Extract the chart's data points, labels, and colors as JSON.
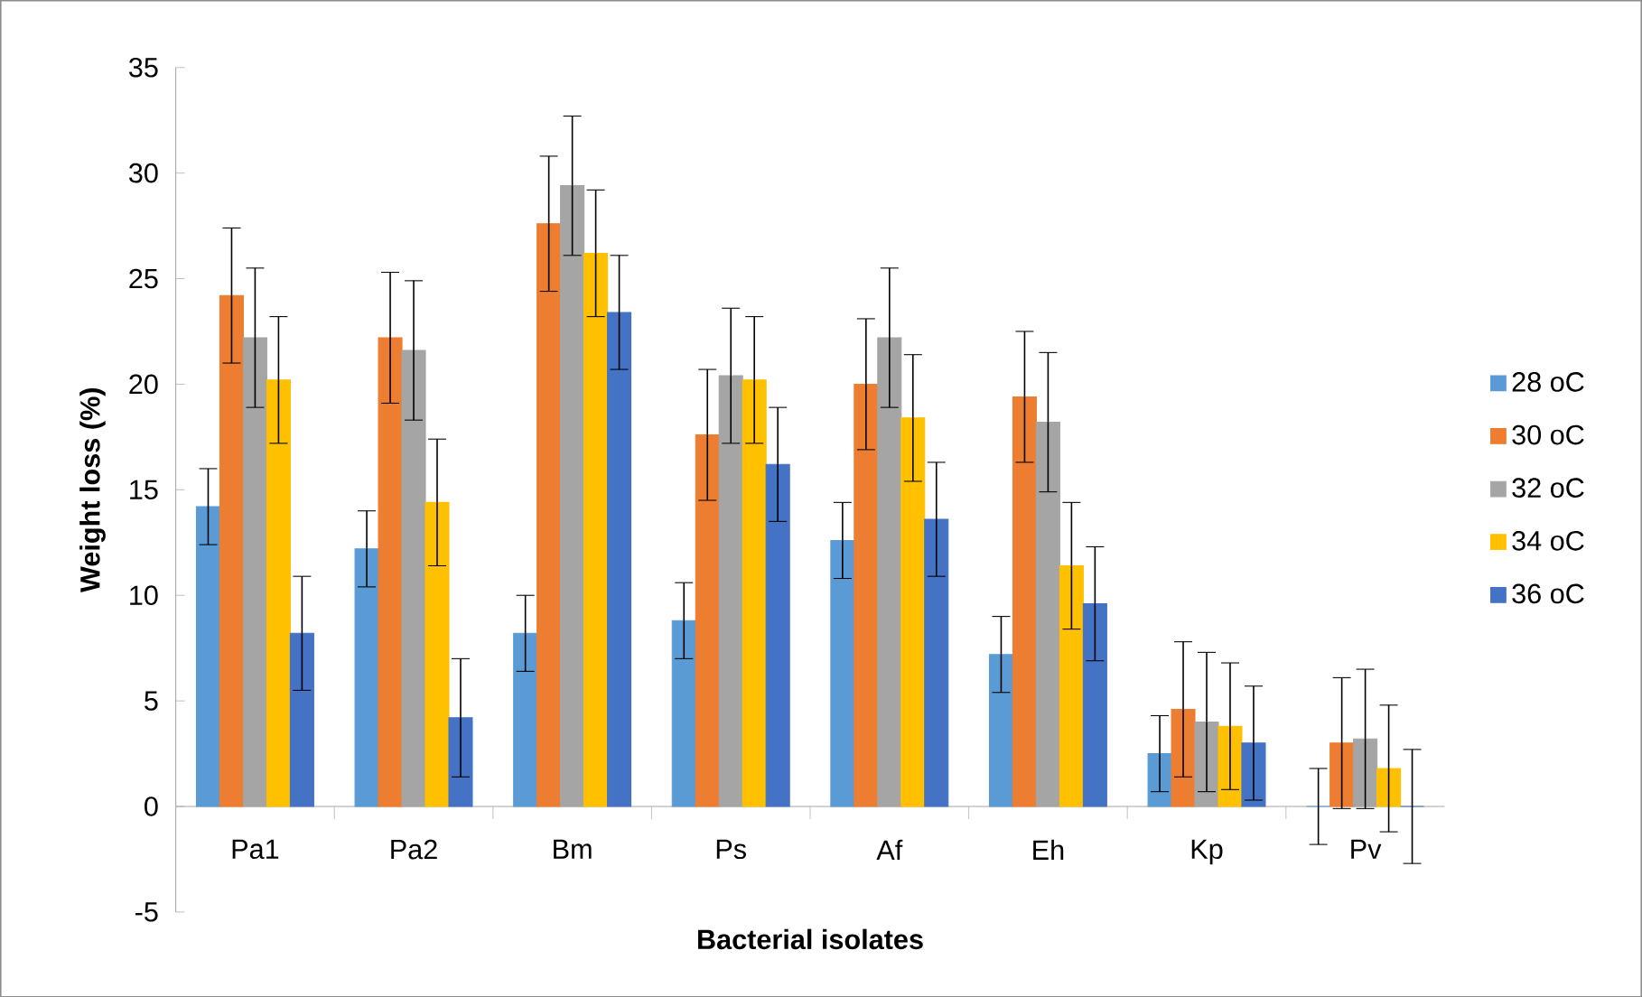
{
  "chart_data": {
    "type": "bar",
    "xlabel": "Bacterial isolates",
    "ylabel": "Weight loss (%)",
    "categories": [
      "Pa1",
      "Pa2",
      "Bm",
      "Ps",
      "Af",
      "Eh",
      "Kp",
      "Pv"
    ],
    "ylim": [
      -5,
      35
    ],
    "yticks": [
      -5,
      0,
      5,
      10,
      15,
      20,
      25,
      30,
      35
    ],
    "legend": "right",
    "grid": false,
    "series": [
      {
        "name": "28 oC",
        "color": "#5b9bd5",
        "values": [
          14.2,
          12.2,
          8.2,
          8.8,
          12.6,
          7.2,
          2.5,
          0
        ],
        "errors": [
          1.8,
          1.8,
          1.8,
          1.8,
          1.8,
          1.8,
          1.8,
          1.8
        ]
      },
      {
        "name": "30 oC",
        "color": "#ed7d31",
        "values": [
          24.2,
          22.2,
          27.6,
          17.6,
          20.0,
          19.4,
          4.6,
          3.0
        ],
        "errors": [
          3.2,
          3.1,
          3.2,
          3.1,
          3.1,
          3.1,
          3.2,
          3.1
        ]
      },
      {
        "name": "32 oC",
        "color": "#a5a5a5",
        "values": [
          22.2,
          21.6,
          29.4,
          20.4,
          22.2,
          18.2,
          4.0,
          3.2
        ],
        "errors": [
          3.3,
          3.3,
          3.3,
          3.2,
          3.3,
          3.3,
          3.3,
          3.3
        ]
      },
      {
        "name": "34 oC",
        "color": "#ffc000",
        "values": [
          20.2,
          14.4,
          26.2,
          20.2,
          18.4,
          11.4,
          3.8,
          1.8
        ],
        "errors": [
          3.0,
          3.0,
          3.0,
          3.0,
          3.0,
          3.0,
          3.0,
          3.0
        ]
      },
      {
        "name": "36 oC",
        "color": "#4472c4",
        "values": [
          8.2,
          4.2,
          23.4,
          16.2,
          13.6,
          9.6,
          3.0,
          0
        ],
        "errors": [
          2.7,
          2.8,
          2.7,
          2.7,
          2.7,
          2.7,
          2.7,
          2.7
        ]
      }
    ]
  }
}
